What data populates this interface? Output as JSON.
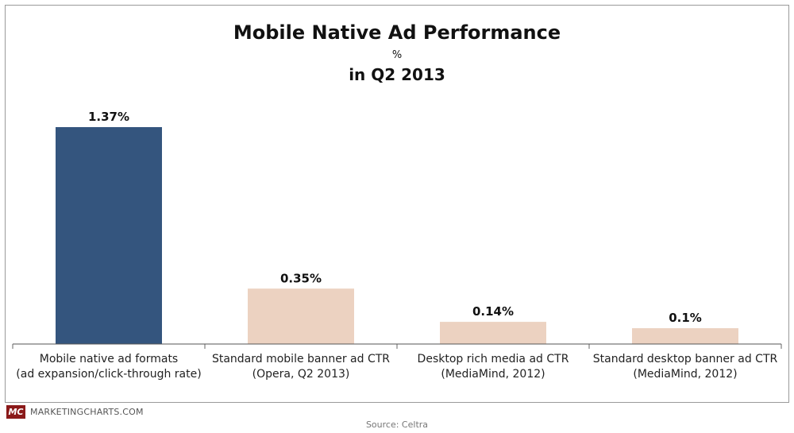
{
  "chart_data": {
    "type": "bar",
    "title": "Mobile Native Ad Performance",
    "unit": "%",
    "subtitle": "in Q2 2013",
    "categories": [
      [
        "Mobile native ad formats",
        "(ad expansion/click-through rate)"
      ],
      [
        "Standard mobile banner ad CTR",
        "(Opera, Q2 2013)"
      ],
      [
        "Desktop rich media ad CTR",
        "(MediaMind, 2012)"
      ],
      [
        "Standard desktop banner ad CTR",
        "(MediaMind, 2012)"
      ]
    ],
    "values": [
      1.37,
      0.35,
      0.14,
      0.1
    ],
    "value_labels": [
      "1.37%",
      "0.35%",
      "0.14%",
      "0.1%"
    ],
    "colors": [
      "#34557e",
      "#ecd2c1",
      "#ecd2c1",
      "#ecd2c1"
    ],
    "ylim": [
      0,
      1.37
    ]
  },
  "footer": {
    "logo_text": "MC",
    "site": "MARKETINGCHARTS.COM",
    "source": "Source: Celtra"
  }
}
